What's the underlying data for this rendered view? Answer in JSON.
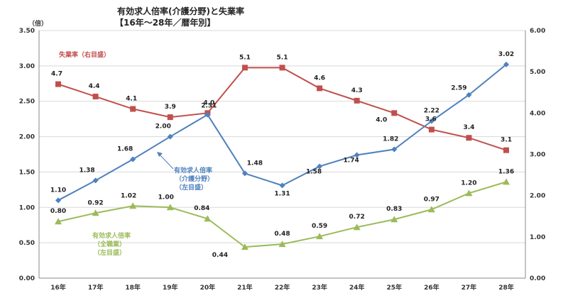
{
  "chart_data": {
    "type": "line",
    "title": "有効求人倍率(介護分野)と失業率",
    "subtitle": "【16年～28年／暦年別】",
    "categories": [
      "16年",
      "17年",
      "18年",
      "19年",
      "20年",
      "21年",
      "22年",
      "23年",
      "24年",
      "25年",
      "26年",
      "27年",
      "28年"
    ],
    "y_left": {
      "unit_label": "（倍）",
      "range": [
        0,
        3.5
      ],
      "ticks": [
        "0.00",
        "0.50",
        "1.00",
        "1.50",
        "2.00",
        "2.50",
        "3.00",
        "3.50"
      ]
    },
    "y_right": {
      "range": [
        0,
        6
      ],
      "ticks": [
        "0.00",
        "1.00",
        "2.00",
        "3.00",
        "4.00",
        "5.00",
        "6.00"
      ]
    },
    "grid": true,
    "series": [
      {
        "name": "失業率（右目盛）",
        "axis": "right",
        "color": "#c0504d",
        "marker": "square",
        "values": [
          4.7,
          4.4,
          4.1,
          3.9,
          4.0,
          5.1,
          5.1,
          4.6,
          4.3,
          4.0,
          3.6,
          3.4,
          3.1
        ],
        "labels": [
          "4.7",
          "4.4",
          "4.1",
          "3.9",
          "4.0",
          "5.1",
          "5.1",
          "4.6",
          "4.3",
          "4.0",
          "3.6",
          "3.4",
          "3.1"
        ]
      },
      {
        "name": "有効求人倍率（介護分野）（左目盛）",
        "axis": "left",
        "color": "#4f81bd",
        "marker": "diamond",
        "values": [
          1.1,
          1.38,
          1.68,
          2.0,
          2.31,
          1.48,
          1.31,
          1.58,
          1.74,
          1.82,
          2.22,
          2.59,
          3.02
        ],
        "labels": [
          "1.10",
          "1.38",
          "1.68",
          "2.00",
          "2.31",
          "1.48",
          "1.31",
          "1.58",
          "1.74",
          "1.82",
          "2.22",
          "2.59",
          "3.02"
        ]
      },
      {
        "name": "有効求人倍率（全職業）（左目盛）",
        "axis": "left",
        "color": "#9bbb59",
        "marker": "triangle",
        "values": [
          0.8,
          0.92,
          1.02,
          1.0,
          0.84,
          0.44,
          0.48,
          0.59,
          0.72,
          0.83,
          0.97,
          1.2,
          1.36
        ],
        "labels": [
          "0.80",
          "0.92",
          "1.02",
          "1.00",
          "0.84",
          "0.44",
          "0.48",
          "0.59",
          "0.72",
          "0.83",
          "0.97",
          "1.20",
          "1.36"
        ]
      }
    ],
    "annotations": [
      {
        "series": 0,
        "lines": [
          "失業率（右目盛）"
        ]
      },
      {
        "series": 1,
        "lines": [
          "有効求人倍率",
          "（介護分野）",
          "（左目盛）"
        ]
      },
      {
        "series": 2,
        "lines": [
          "有効求人倍率",
          "（全職業）",
          "（左目盛）"
        ]
      }
    ]
  }
}
